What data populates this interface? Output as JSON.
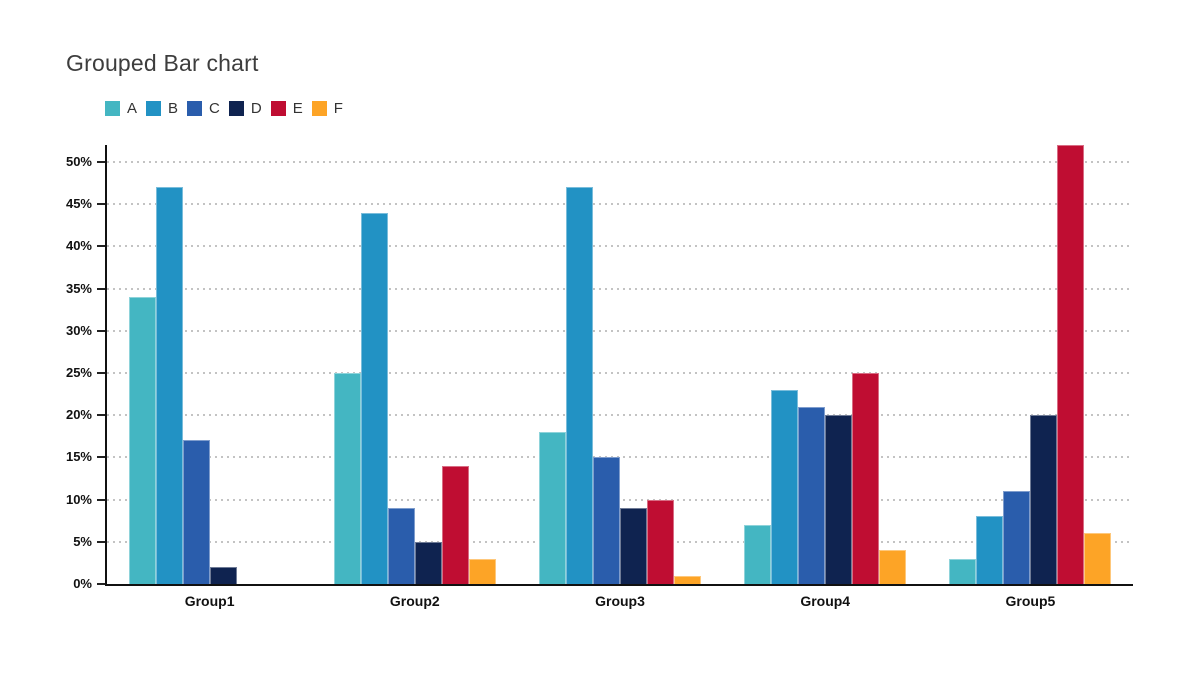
{
  "chart_data": {
    "type": "bar",
    "title": "Grouped Bar chart",
    "categories": [
      "Group1",
      "Group2",
      "Group3",
      "Group4",
      "Group5"
    ],
    "series": [
      {
        "name": "A",
        "color": "#44B6C2",
        "values": [
          34,
          25,
          18,
          7,
          3
        ]
      },
      {
        "name": "B",
        "color": "#2292C4",
        "values": [
          47,
          44,
          47,
          23,
          8
        ]
      },
      {
        "name": "C",
        "color": "#2A5DAC",
        "values": [
          17,
          9,
          15,
          21,
          11
        ]
      },
      {
        "name": "D",
        "color": "#0F2350",
        "values": [
          2,
          5,
          9,
          20,
          20
        ]
      },
      {
        "name": "E",
        "color": "#BF0D32",
        "values": [
          0,
          14,
          10,
          25,
          52
        ]
      },
      {
        "name": "F",
        "color": "#FDA426",
        "values": [
          0,
          3,
          1,
          4,
          6
        ]
      }
    ],
    "xlabel": "",
    "ylabel": "",
    "ylim": [
      0,
      50
    ],
    "y_render_max": 52,
    "y_tick_values": [
      0,
      5,
      10,
      15,
      20,
      25,
      30,
      35,
      40,
      45,
      50
    ],
    "y_tick_labels": [
      "0%",
      "5%",
      "10%",
      "15%",
      "20%",
      "25%",
      "30%",
      "35%",
      "40%",
      "45%",
      "50%"
    ],
    "grid": "dotted-horizontal",
    "legend_position": "top-left",
    "colors": {
      "background": "#ffffff",
      "axis": "#111111",
      "gridline": "#c3c3c3",
      "title_text": "#3d3d3d",
      "tick_text": "#111111",
      "legend_text": "#333333"
    }
  }
}
